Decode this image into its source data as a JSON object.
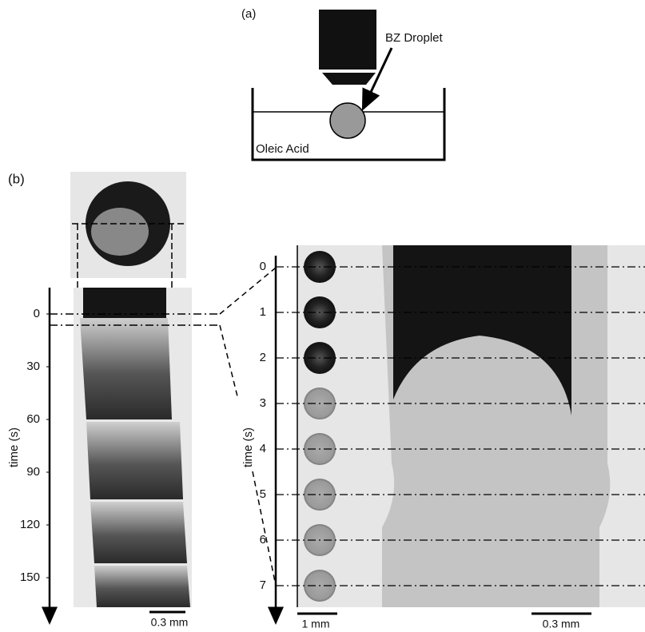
{
  "panel_a": {
    "label": "(a)",
    "droplet_label": "BZ Droplet",
    "medium_label": "Oleic Acid"
  },
  "panel_b": {
    "label": "(b)",
    "left": {
      "axis_label": "time (s)",
      "ticks": [
        0,
        30,
        60,
        90,
        120,
        150
      ],
      "scale_bar": "0.3 mm"
    },
    "right": {
      "axis_label": "time (s)",
      "ticks": [
        0,
        1,
        2,
        3,
        4,
        5,
        6,
        7
      ],
      "droplet_scale_bar": "1 mm",
      "scale_bar": "0.3 mm"
    }
  }
}
